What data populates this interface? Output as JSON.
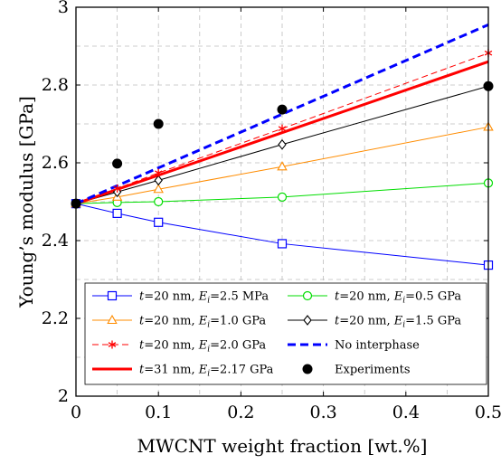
{
  "chart_data": {
    "type": "line",
    "xlabel": "MWCNT weight fraction [wt.%]",
    "ylabel": "Young’s modulus [GPa]",
    "xlim": [
      0,
      0.5
    ],
    "ylim": [
      2,
      3
    ],
    "xticks": [
      0,
      0.1,
      0.2,
      0.3,
      0.4,
      0.5
    ],
    "xtick_labels": [
      "0",
      "0.1",
      "0.2",
      "0.3",
      "0.4",
      "0.5"
    ],
    "yticks": [
      2,
      2.2,
      2.4,
      2.6,
      2.8,
      3
    ],
    "ytick_labels": [
      "2",
      "2.2",
      "2.4",
      "2.6",
      "2.8",
      "3"
    ],
    "grid": true,
    "legend_position": "bottom",
    "series": [
      {
        "name": "t=20 nm, Ei=2.5 MPa",
        "label": {
          "pre": "t",
          "a": "=20 nm, ",
          "b": "E",
          "sub": "i",
          "c": "=2.5 MPa"
        },
        "color": "#0000ff",
        "marker": "square",
        "style": "solid",
        "x": [
          0,
          0.05,
          0.1,
          0.25,
          0.5
        ],
        "y": [
          2.495,
          2.47,
          2.447,
          2.392,
          2.337
        ]
      },
      {
        "name": "t=20 nm, Ei=0.5 GPa",
        "label": {
          "pre": "t",
          "a": "=20 nm, ",
          "b": "E",
          "sub": "i",
          "c": "=0.5 GPa"
        },
        "color": "#00dd00",
        "marker": "circle",
        "style": "solid",
        "x": [
          0,
          0.05,
          0.1,
          0.25,
          0.5
        ],
        "y": [
          2.495,
          2.498,
          2.5,
          2.512,
          2.548
        ]
      },
      {
        "name": "t=20 nm, Ei=1.0 GPa",
        "label": {
          "pre": "t",
          "a": "=20 nm, ",
          "b": "E",
          "sub": "i",
          "c": "=1.0 GPa"
        },
        "color": "#ff8c00",
        "marker": "triangle",
        "style": "solid",
        "x": [
          0,
          0.05,
          0.1,
          0.25,
          0.5
        ],
        "y": [
          2.495,
          2.512,
          2.532,
          2.59,
          2.692
        ]
      },
      {
        "name": "t=20 nm, Ei=1.5 GPa",
        "label": {
          "pre": "t",
          "a": "=20 nm, ",
          "b": "E",
          "sub": "i",
          "c": "=1.5 GPa"
        },
        "color": "#000000",
        "marker": "diamond",
        "style": "solid",
        "x": [
          0,
          0.05,
          0.1,
          0.25,
          0.5
        ],
        "y": [
          2.495,
          2.525,
          2.555,
          2.647,
          2.797
        ]
      },
      {
        "name": "t=20 nm, Ei=2.0 GPa",
        "label": {
          "pre": "t",
          "a": "=20 nm, ",
          "b": "E",
          "sub": "i",
          "c": "=2.0 GPa"
        },
        "color": "#ff0000",
        "marker": "asterisk",
        "style": "dashed-thin",
        "x": [
          0,
          0.05,
          0.1,
          0.25,
          0.5
        ],
        "y": [
          2.495,
          2.534,
          2.574,
          2.688,
          2.882
        ]
      },
      {
        "name": "No interphase",
        "label": {
          "text": "No interphase"
        },
        "color": "#0000ff",
        "marker": "none",
        "style": "dashed-thick",
        "x": [
          0,
          0.5
        ],
        "y": [
          2.495,
          2.955
        ]
      },
      {
        "name": "t=31 nm, Ei=2.17 GPa",
        "label": {
          "pre": "t",
          "a": "=31 nm, ",
          "b": "E",
          "sub": "i",
          "c": "=2.17 GPa"
        },
        "color": "#ff0000",
        "marker": "none",
        "style": "solid-thick",
        "x": [
          0,
          0.5
        ],
        "y": [
          2.495,
          2.86
        ]
      },
      {
        "name": "Experiments",
        "label": {
          "text": "Experiments"
        },
        "color": "#000000",
        "marker": "dot",
        "style": "none",
        "x": [
          0,
          0.05,
          0.1,
          0.25,
          0.5
        ],
        "y": [
          2.495,
          2.598,
          2.7,
          2.737,
          2.797
        ]
      }
    ]
  }
}
